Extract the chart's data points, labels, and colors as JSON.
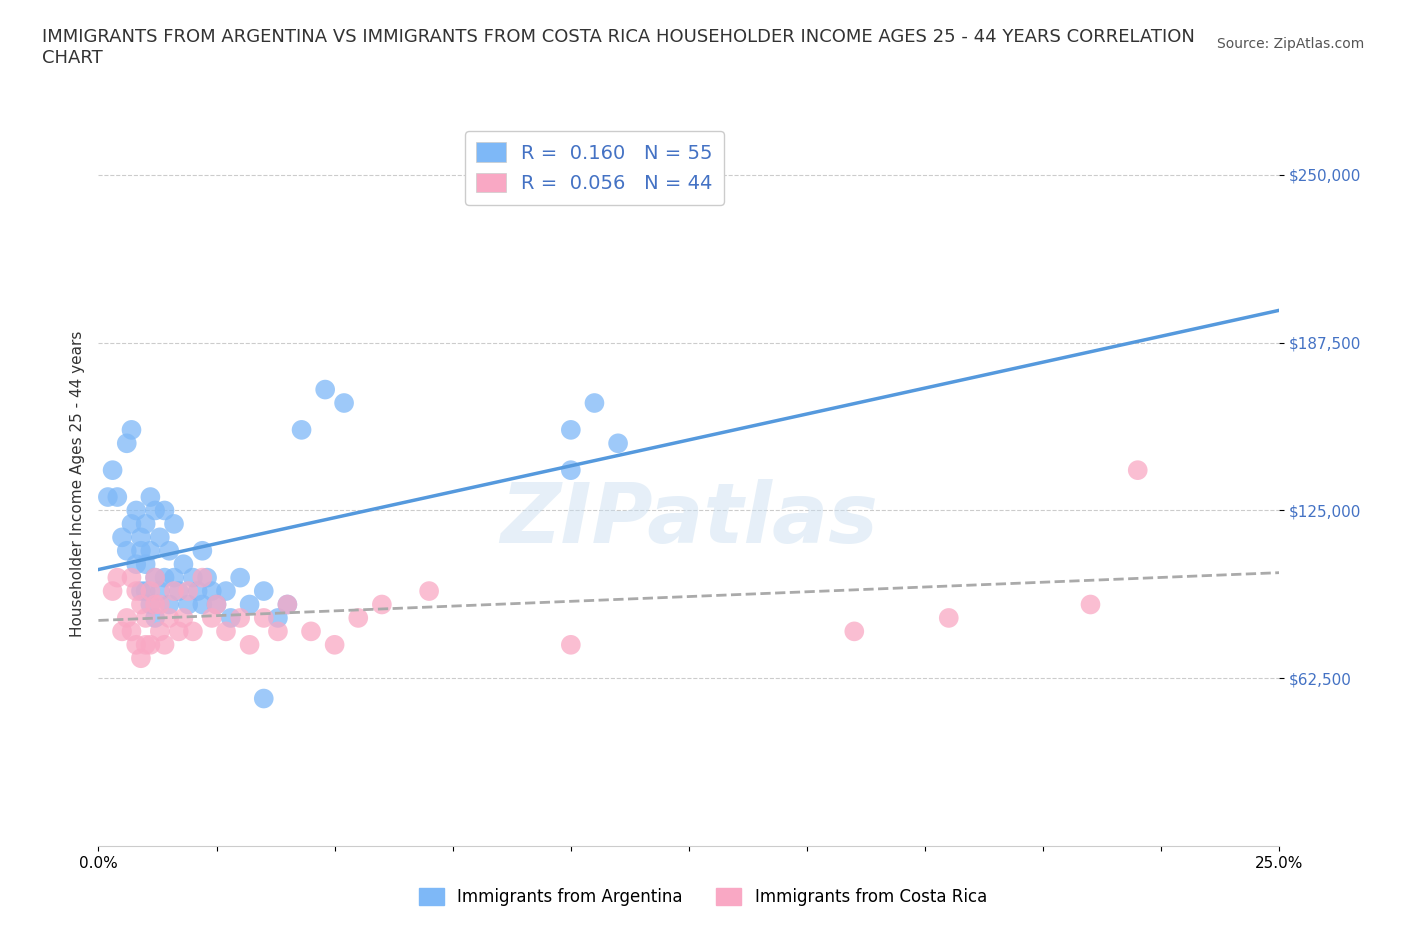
{
  "title": "IMMIGRANTS FROM ARGENTINA VS IMMIGRANTS FROM COSTA RICA HOUSEHOLDER INCOME AGES 25 - 44 YEARS CORRELATION\nCHART",
  "source": "Source: ZipAtlas.com",
  "ylabel": "Householder Income Ages 25 - 44 years",
  "yticks": [
    62500,
    125000,
    187500,
    250000
  ],
  "ytick_labels": [
    "$62,500",
    "$125,000",
    "$187,500",
    "$250,000"
  ],
  "xlim": [
    0.0,
    0.25
  ],
  "ylim": [
    0,
    270000
  ],
  "watermark": "ZIPatlas",
  "argentina_color": "#7eb8f7",
  "costa_rica_color": "#f9a8c4",
  "argentina_line_color": "#5599dd",
  "costa_rica_line_color": "#e87fa0",
  "costa_rica_dashed_color": "#aaaaaa",
  "argentina_R": 0.16,
  "argentina_N": 55,
  "costa_rica_R": 0.056,
  "costa_rica_N": 44,
  "argentina_x": [
    0.002,
    0.003,
    0.004,
    0.005,
    0.006,
    0.006,
    0.007,
    0.007,
    0.008,
    0.008,
    0.009,
    0.009,
    0.009,
    0.01,
    0.01,
    0.01,
    0.011,
    0.011,
    0.011,
    0.012,
    0.012,
    0.012,
    0.013,
    0.013,
    0.014,
    0.014,
    0.015,
    0.015,
    0.016,
    0.016,
    0.017,
    0.018,
    0.019,
    0.02,
    0.021,
    0.022,
    0.022,
    0.023,
    0.024,
    0.025,
    0.027,
    0.028,
    0.03,
    0.032,
    0.035,
    0.038,
    0.04,
    0.043,
    0.048,
    0.052,
    0.1,
    0.105,
    0.11,
    0.1,
    0.035
  ],
  "argentina_y": [
    130000,
    140000,
    130000,
    115000,
    150000,
    110000,
    155000,
    120000,
    125000,
    105000,
    115000,
    95000,
    110000,
    120000,
    95000,
    105000,
    130000,
    110000,
    90000,
    125000,
    100000,
    85000,
    115000,
    95000,
    125000,
    100000,
    110000,
    90000,
    120000,
    100000,
    95000,
    105000,
    90000,
    100000,
    95000,
    110000,
    90000,
    100000,
    95000,
    90000,
    95000,
    85000,
    100000,
    90000,
    95000,
    85000,
    90000,
    155000,
    170000,
    165000,
    155000,
    165000,
    150000,
    140000,
    55000
  ],
  "costa_rica_x": [
    0.003,
    0.004,
    0.005,
    0.006,
    0.007,
    0.007,
    0.008,
    0.008,
    0.009,
    0.009,
    0.01,
    0.01,
    0.011,
    0.011,
    0.012,
    0.012,
    0.013,
    0.013,
    0.014,
    0.015,
    0.016,
    0.017,
    0.018,
    0.019,
    0.02,
    0.022,
    0.024,
    0.025,
    0.027,
    0.03,
    0.032,
    0.035,
    0.038,
    0.04,
    0.045,
    0.05,
    0.055,
    0.06,
    0.07,
    0.1,
    0.16,
    0.18,
    0.21,
    0.22
  ],
  "costa_rica_y": [
    95000,
    100000,
    80000,
    85000,
    100000,
    80000,
    95000,
    75000,
    90000,
    70000,
    85000,
    75000,
    95000,
    75000,
    90000,
    100000,
    80000,
    90000,
    75000,
    85000,
    95000,
    80000,
    85000,
    95000,
    80000,
    100000,
    85000,
    90000,
    80000,
    85000,
    75000,
    85000,
    80000,
    90000,
    80000,
    75000,
    85000,
    90000,
    95000,
    75000,
    80000,
    85000,
    90000,
    140000
  ],
  "legend_fontsize": 14,
  "title_fontsize": 13,
  "tick_fontsize": 11,
  "background_color": "#ffffff",
  "grid_color": "#cccccc"
}
